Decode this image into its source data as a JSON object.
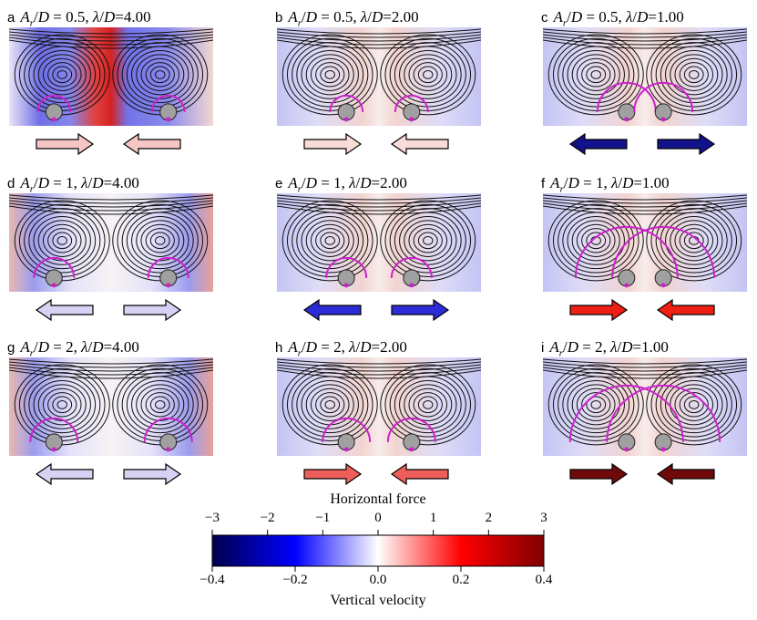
{
  "chart_data": {
    "type": "heatmap",
    "panels": [
      {
        "label": "a",
        "title": "A_r/D = 0.5, λ/D=4.00",
        "ar": 0.5,
        "lambda": 4.0,
        "horizontal_force": "attract",
        "force_magnitude": 0.4,
        "arrow_color": "#f4c6c4"
      },
      {
        "label": "b",
        "title": "A_r/D = 0.5, λ/D=2.00",
        "ar": 0.5,
        "lambda": 2.0,
        "horizontal_force": "attract",
        "force_magnitude": 0.3,
        "arrow_color": "#f9dcd7"
      },
      {
        "label": "c",
        "title": "A_r/D = 0.5, λ/D=1.00",
        "ar": 0.5,
        "lambda": 1.0,
        "horizontal_force": "repel",
        "force_magnitude": 2.6,
        "arrow_color": "#12128c"
      },
      {
        "label": "d",
        "title": "A_r/D = 1, λ/D=4.00",
        "ar": 1,
        "lambda": 4.0,
        "horizontal_force": "repel",
        "force_magnitude": 0.5,
        "arrow_color": "#d5d2f3"
      },
      {
        "label": "e",
        "title": "A_r/D = 1, λ/D=2.00",
        "ar": 1,
        "lambda": 2.0,
        "horizontal_force": "repel",
        "force_magnitude": 1.8,
        "arrow_color": "#2b2bd8"
      },
      {
        "label": "f",
        "title": "A_r/D = 1, λ/D=1.00",
        "ar": 1,
        "lambda": 1.0,
        "horizontal_force": "attract",
        "force_magnitude": 2.0,
        "arrow_color": "#ee1f14"
      },
      {
        "label": "g",
        "title": "A_r/D = 2, λ/D=4.00",
        "ar": 2,
        "lambda": 4.0,
        "horizontal_force": "repel",
        "force_magnitude": 0.4,
        "arrow_color": "#d5d2f3"
      },
      {
        "label": "h",
        "title": "A_r/D = 2, λ/D=2.00",
        "ar": 2,
        "lambda": 2.0,
        "horizontal_force": "attract",
        "force_magnitude": 1.2,
        "arrow_color": "#ef5f5a"
      },
      {
        "label": "i",
        "title": "A_r/D = 2, λ/D=1.00",
        "ar": 2,
        "lambda": 1.0,
        "horizontal_force": "attract",
        "force_magnitude": 2.9,
        "arrow_color": "#700a0a"
      }
    ],
    "colorbar": {
      "top_label": "Horizontal force",
      "top_ticks": [
        "−3",
        "−2",
        "−1",
        "0",
        "1",
        "2",
        "3"
      ],
      "top_range": [
        -3,
        3
      ],
      "bottom_label": "Vertical velocity",
      "bottom_ticks": [
        "−0.4",
        "−0.2",
        "0.0",
        "0.2",
        "0.4"
      ],
      "bottom_range": [
        -0.4,
        0.4
      ],
      "colormap": "seismic",
      "colors": {
        "neg_extreme": "#00004c",
        "neg": "#0000ff",
        "zero": "#ffffff",
        "pos": "#ff0000",
        "pos_extreme": "#800000"
      }
    },
    "colors": {
      "circle": "#cc22cc",
      "cylinder": "#a0a0a0",
      "streamline": "#111111"
    }
  }
}
